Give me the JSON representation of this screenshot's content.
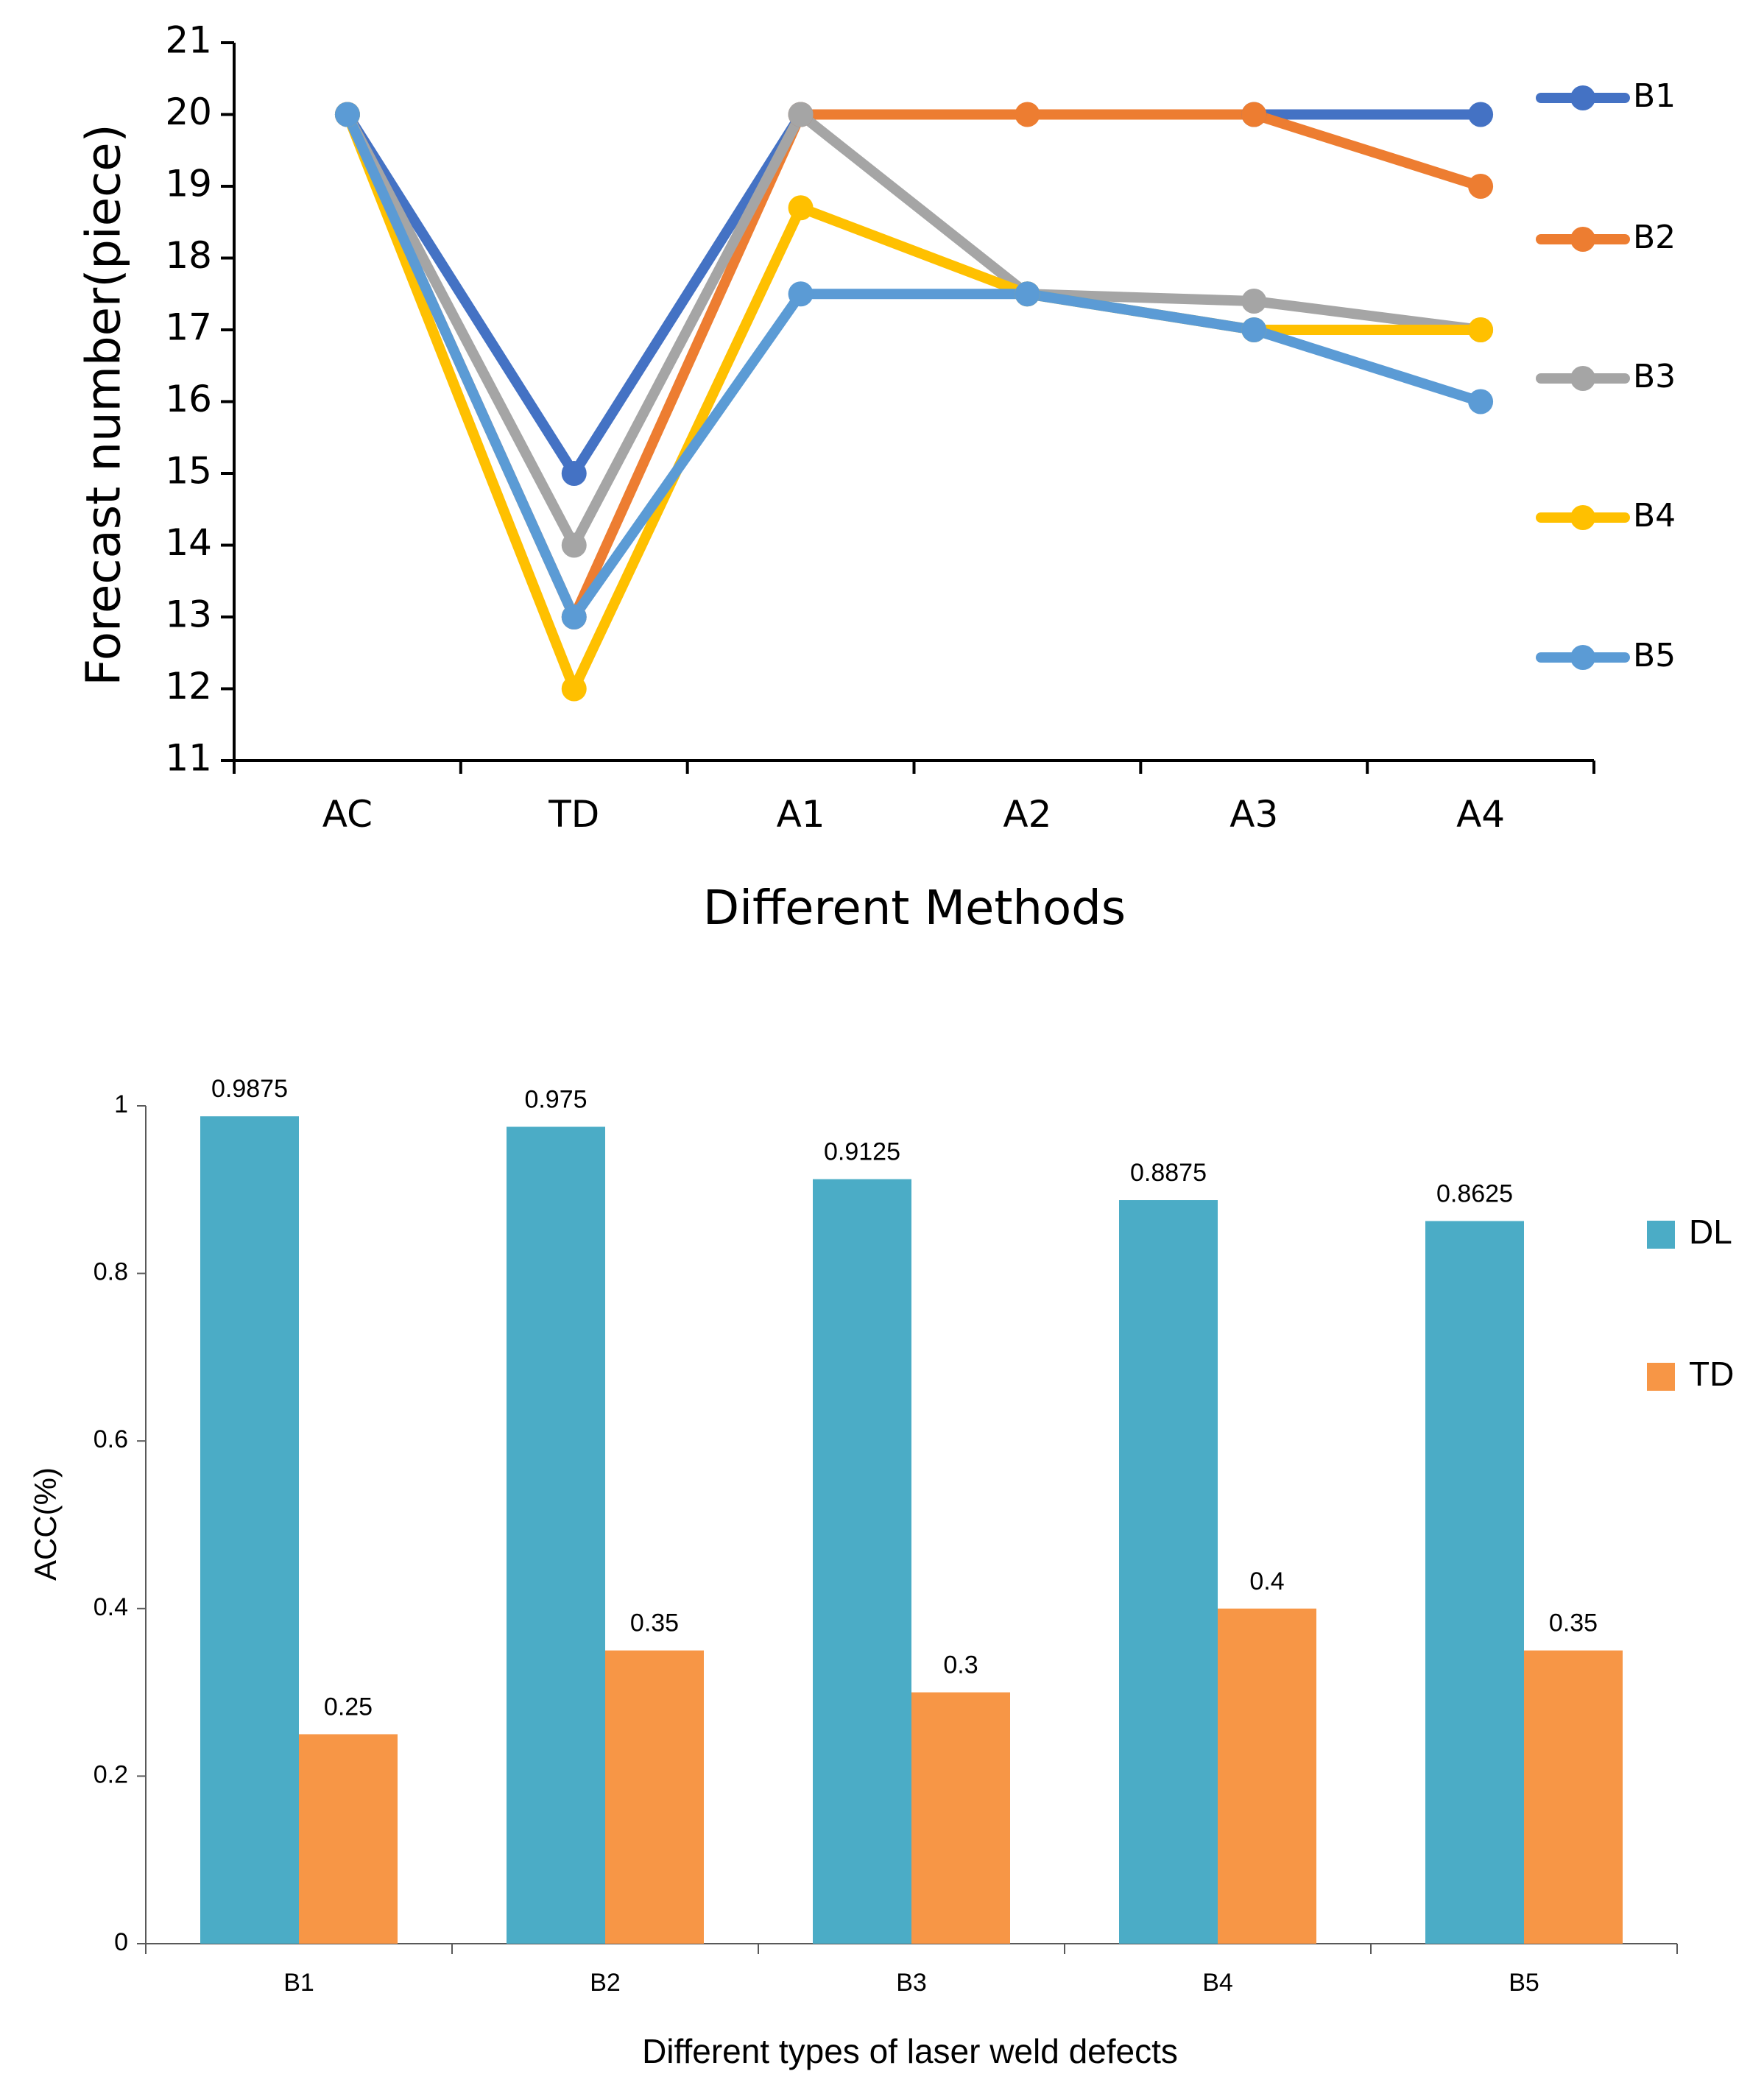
{
  "chart_data": [
    {
      "type": "line",
      "title": "",
      "xlabel": "Different Methods",
      "ylabel": "Forecast number(piece)",
      "categories": [
        "AC",
        "TD",
        "A1",
        "A2",
        "A3",
        "A4"
      ],
      "ylim": [
        11,
        21
      ],
      "yticks": [
        "11",
        "12",
        "13",
        "14",
        "15",
        "16",
        "17",
        "18",
        "19",
        "20",
        "21"
      ],
      "grid": false,
      "legend": "right",
      "series": [
        {
          "name": "B1",
          "color": "#4472C4",
          "values": [
            20,
            15,
            20,
            null,
            20,
            20
          ]
        },
        {
          "name": "B2",
          "color": "#ED7D31",
          "values": [
            20,
            13,
            20,
            20,
            20,
            19
          ]
        },
        {
          "name": "B3",
          "color": "#A5A5A5",
          "values": [
            20,
            14,
            20,
            17.5,
            17.4,
            17
          ]
        },
        {
          "name": "B4",
          "color": "#FFC000",
          "values": [
            20,
            12,
            18.7,
            17.5,
            17,
            17
          ]
        },
        {
          "name": "B5",
          "color": "#5B9BD5",
          "values": [
            20,
            13,
            17.5,
            17.5,
            17,
            16
          ]
        }
      ]
    },
    {
      "type": "bar",
      "title": "",
      "xlabel": "Different types of laser weld defects",
      "ylabel": "ACC(%)",
      "categories": [
        "B1",
        "B2",
        "B3",
        "B4",
        "B5"
      ],
      "ylim": [
        0,
        1
      ],
      "yticks": [
        "0",
        "0.2",
        "0.4",
        "0.6",
        "0.8",
        "1"
      ],
      "grid": false,
      "legend": "right",
      "series": [
        {
          "name": "DL",
          "color": "#4BACC6",
          "values": [
            0.9875,
            0.975,
            0.9125,
            0.8875,
            0.8625
          ],
          "labels": [
            "0.9875",
            "0.975",
            "0.9125",
            "0.8875",
            "0.8625"
          ]
        },
        {
          "name": "TD",
          "color": "#F79646",
          "values": [
            0.25,
            0.35,
            0.3,
            0.4,
            0.35
          ],
          "labels": [
            "0.25",
            "0.35",
            "0.3",
            "0.4",
            "0.35"
          ]
        }
      ]
    }
  ]
}
